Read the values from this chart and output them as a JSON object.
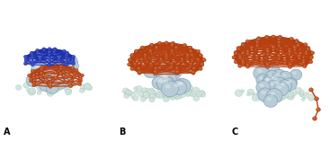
{
  "figure_width": 3.67,
  "figure_height": 1.57,
  "dpi": 100,
  "background_color": "#ffffff",
  "panels": [
    "A",
    "B",
    "C"
  ],
  "panel_label_color": "#000000",
  "panel_label_fontsize": 7,
  "panel_label_fontweight": "bold",
  "orange_line": "#b84010",
  "orange_node": "#cc5522",
  "blue_line": "#1a2eb0",
  "blue_node": "#3348cc",
  "fe_sphere": "#b8ccd8",
  "fe_edge": "#7a9aaa",
  "support_sphere": "#c8dcd0",
  "support_edge": "#90b0a0",
  "support_small": "#d8ece4"
}
